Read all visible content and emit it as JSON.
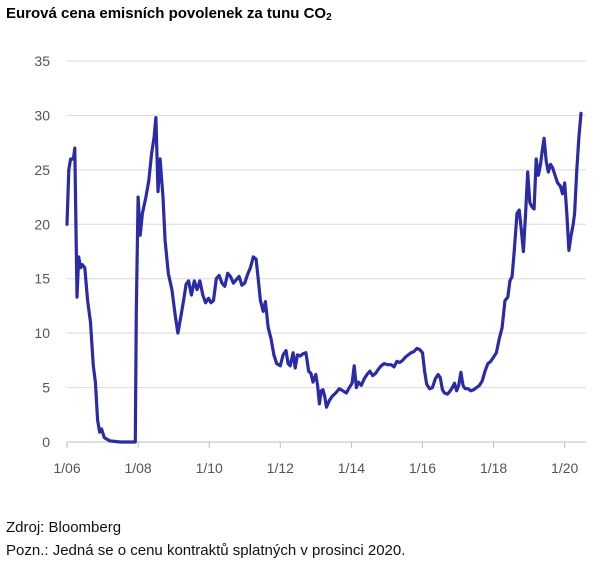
{
  "title_main": "Eurová cena emisních povolenek za tunu CO",
  "title_sub": "2",
  "source": "Zdroj: Bloomberg",
  "note": "Pozn.: Jedná se o cenu kontraktů splatných v prosinci 2020.",
  "colors": {
    "line": "#2b2ba8",
    "grid": "#d9d9d9",
    "axis": "#bfbfbf",
    "tick_text": "#555555"
  },
  "chart_data": {
    "type": "line",
    "xlim": [
      2006.0,
      2020.6
    ],
    "ylim": [
      0,
      35
    ],
    "y_ticks": [
      0,
      5,
      10,
      15,
      20,
      25,
      30,
      35
    ],
    "x_ticks": [
      {
        "value": 2006.0,
        "label": "1/06"
      },
      {
        "value": 2008.0,
        "label": "1/08"
      },
      {
        "value": 2010.0,
        "label": "1/10"
      },
      {
        "value": 2012.0,
        "label": "1/12"
      },
      {
        "value": 2014.0,
        "label": "1/14"
      },
      {
        "value": 2016.0,
        "label": "1/16"
      },
      {
        "value": 2018.0,
        "label": "1/18"
      },
      {
        "value": 2020.0,
        "label": "1/20"
      }
    ],
    "grid": "horizontal",
    "series": [
      {
        "points": [
          [
            2006.0,
            20.0
          ],
          [
            2006.05,
            25.0
          ],
          [
            2006.1,
            26.0
          ],
          [
            2006.18,
            26.0
          ],
          [
            2006.22,
            27.0
          ],
          [
            2006.28,
            13.3
          ],
          [
            2006.33,
            17.0
          ],
          [
            2006.38,
            16.0
          ],
          [
            2006.43,
            16.3
          ],
          [
            2006.5,
            16.0
          ],
          [
            2006.58,
            13.0
          ],
          [
            2006.66,
            11.0
          ],
          [
            2006.74,
            7.0
          ],
          [
            2006.8,
            5.5
          ],
          [
            2006.86,
            2.0
          ],
          [
            2006.92,
            0.9
          ],
          [
            2006.97,
            1.2
          ],
          [
            2007.05,
            0.4
          ],
          [
            2007.2,
            0.1
          ],
          [
            2007.5,
            0.0
          ],
          [
            2007.92,
            0.0
          ],
          [
            2007.95,
            12.0
          ],
          [
            2008.0,
            22.5
          ],
          [
            2008.06,
            19.0
          ],
          [
            2008.12,
            21.0
          ],
          [
            2008.22,
            22.5
          ],
          [
            2008.3,
            24.0
          ],
          [
            2008.38,
            26.5
          ],
          [
            2008.45,
            28.0
          ],
          [
            2008.5,
            29.8
          ],
          [
            2008.56,
            23.0
          ],
          [
            2008.62,
            26.0
          ],
          [
            2008.7,
            22.5
          ],
          [
            2008.76,
            18.5
          ],
          [
            2008.85,
            15.5
          ],
          [
            2008.95,
            14.0
          ],
          [
            2009.05,
            11.5
          ],
          [
            2009.12,
            10.0
          ],
          [
            2009.2,
            11.5
          ],
          [
            2009.28,
            13.0
          ],
          [
            2009.35,
            14.5
          ],
          [
            2009.42,
            14.8
          ],
          [
            2009.5,
            13.5
          ],
          [
            2009.58,
            14.8
          ],
          [
            2009.66,
            14.0
          ],
          [
            2009.74,
            14.8
          ],
          [
            2009.82,
            13.5
          ],
          [
            2009.9,
            12.8
          ],
          [
            2009.98,
            13.2
          ],
          [
            2010.05,
            12.8
          ],
          [
            2010.12,
            13.0
          ],
          [
            2010.2,
            15.0
          ],
          [
            2010.28,
            15.3
          ],
          [
            2010.36,
            14.6
          ],
          [
            2010.44,
            14.3
          ],
          [
            2010.52,
            15.5
          ],
          [
            2010.6,
            15.2
          ],
          [
            2010.68,
            14.6
          ],
          [
            2010.76,
            14.9
          ],
          [
            2010.84,
            15.2
          ],
          [
            2010.92,
            14.4
          ],
          [
            2011.0,
            14.6
          ],
          [
            2011.08,
            15.4
          ],
          [
            2011.16,
            16.0
          ],
          [
            2011.24,
            17.0
          ],
          [
            2011.32,
            16.8
          ],
          [
            2011.38,
            15.0
          ],
          [
            2011.44,
            13.0
          ],
          [
            2011.52,
            12.0
          ],
          [
            2011.58,
            12.9
          ],
          [
            2011.66,
            10.5
          ],
          [
            2011.74,
            9.5
          ],
          [
            2011.82,
            8.0
          ],
          [
            2011.9,
            7.2
          ],
          [
            2012.0,
            7.0
          ],
          [
            2012.08,
            8.0
          ],
          [
            2012.16,
            8.4
          ],
          [
            2012.22,
            7.2
          ],
          [
            2012.28,
            7.0
          ],
          [
            2012.36,
            8.2
          ],
          [
            2012.42,
            6.8
          ],
          [
            2012.48,
            8.0
          ],
          [
            2012.56,
            7.9
          ],
          [
            2012.64,
            8.1
          ],
          [
            2012.72,
            8.2
          ],
          [
            2012.8,
            6.5
          ],
          [
            2012.86,
            6.3
          ],
          [
            2012.92,
            5.5
          ],
          [
            2013.0,
            6.2
          ],
          [
            2013.05,
            5.2
          ],
          [
            2013.1,
            3.5
          ],
          [
            2013.15,
            4.7
          ],
          [
            2013.2,
            4.8
          ],
          [
            2013.25,
            4.2
          ],
          [
            2013.3,
            3.2
          ],
          [
            2013.38,
            3.8
          ],
          [
            2013.46,
            4.2
          ],
          [
            2013.56,
            4.5
          ],
          [
            2013.66,
            4.9
          ],
          [
            2013.76,
            4.7
          ],
          [
            2013.86,
            4.5
          ],
          [
            2013.94,
            5.0
          ],
          [
            2014.02,
            5.4
          ],
          [
            2014.08,
            7.0
          ],
          [
            2014.14,
            5.0
          ],
          [
            2014.2,
            5.5
          ],
          [
            2014.28,
            5.2
          ],
          [
            2014.36,
            5.8
          ],
          [
            2014.44,
            6.2
          ],
          [
            2014.52,
            6.5
          ],
          [
            2014.6,
            6.1
          ],
          [
            2014.68,
            6.3
          ],
          [
            2014.76,
            6.7
          ],
          [
            2014.84,
            7.0
          ],
          [
            2014.92,
            7.2
          ],
          [
            2015.02,
            7.1
          ],
          [
            2015.12,
            7.1
          ],
          [
            2015.2,
            6.9
          ],
          [
            2015.28,
            7.4
          ],
          [
            2015.36,
            7.3
          ],
          [
            2015.44,
            7.5
          ],
          [
            2015.52,
            7.8
          ],
          [
            2015.6,
            8.0
          ],
          [
            2015.68,
            8.2
          ],
          [
            2015.76,
            8.3
          ],
          [
            2015.84,
            8.6
          ],
          [
            2015.92,
            8.5
          ],
          [
            2016.0,
            8.2
          ],
          [
            2016.06,
            6.5
          ],
          [
            2016.12,
            5.3
          ],
          [
            2016.2,
            4.9
          ],
          [
            2016.28,
            5.0
          ],
          [
            2016.36,
            5.8
          ],
          [
            2016.44,
            6.2
          ],
          [
            2016.5,
            5.9
          ],
          [
            2016.56,
            4.8
          ],
          [
            2016.62,
            4.5
          ],
          [
            2016.7,
            4.4
          ],
          [
            2016.76,
            4.6
          ],
          [
            2016.84,
            5.0
          ],
          [
            2016.9,
            5.4
          ],
          [
            2016.96,
            4.7
          ],
          [
            2017.02,
            5.2
          ],
          [
            2017.08,
            6.4
          ],
          [
            2017.14,
            5.2
          ],
          [
            2017.2,
            4.9
          ],
          [
            2017.28,
            4.9
          ],
          [
            2017.36,
            4.7
          ],
          [
            2017.44,
            4.8
          ],
          [
            2017.52,
            5.0
          ],
          [
            2017.6,
            5.2
          ],
          [
            2017.68,
            5.6
          ],
          [
            2017.76,
            6.5
          ],
          [
            2017.84,
            7.2
          ],
          [
            2017.92,
            7.4
          ],
          [
            2018.0,
            7.8
          ],
          [
            2018.08,
            8.2
          ],
          [
            2018.16,
            9.5
          ],
          [
            2018.24,
            10.5
          ],
          [
            2018.32,
            13.0
          ],
          [
            2018.4,
            13.3
          ],
          [
            2018.46,
            14.8
          ],
          [
            2018.52,
            15.2
          ],
          [
            2018.58,
            17.5
          ],
          [
            2018.66,
            21.0
          ],
          [
            2018.72,
            21.3
          ],
          [
            2018.78,
            19.5
          ],
          [
            2018.84,
            17.5
          ],
          [
            2018.9,
            21.0
          ],
          [
            2018.96,
            24.8
          ],
          [
            2019.02,
            22.0
          ],
          [
            2019.08,
            21.6
          ],
          [
            2019.14,
            21.4
          ],
          [
            2019.2,
            26.0
          ],
          [
            2019.26,
            24.5
          ],
          [
            2019.32,
            25.5
          ],
          [
            2019.38,
            27.0
          ],
          [
            2019.42,
            27.9
          ],
          [
            2019.48,
            25.8
          ],
          [
            2019.54,
            24.8
          ],
          [
            2019.6,
            25.5
          ],
          [
            2019.66,
            25.2
          ],
          [
            2019.72,
            24.6
          ],
          [
            2019.8,
            23.8
          ],
          [
            2019.88,
            23.5
          ],
          [
            2019.94,
            22.8
          ],
          [
            2020.0,
            23.8
          ],
          [
            2020.06,
            21.0
          ],
          [
            2020.12,
            17.6
          ],
          [
            2020.18,
            19.0
          ],
          [
            2020.24,
            20.0
          ],
          [
            2020.28,
            21.0
          ],
          [
            2020.34,
            25.0
          ],
          [
            2020.4,
            28.0
          ],
          [
            2020.46,
            30.2
          ]
        ]
      }
    ]
  }
}
